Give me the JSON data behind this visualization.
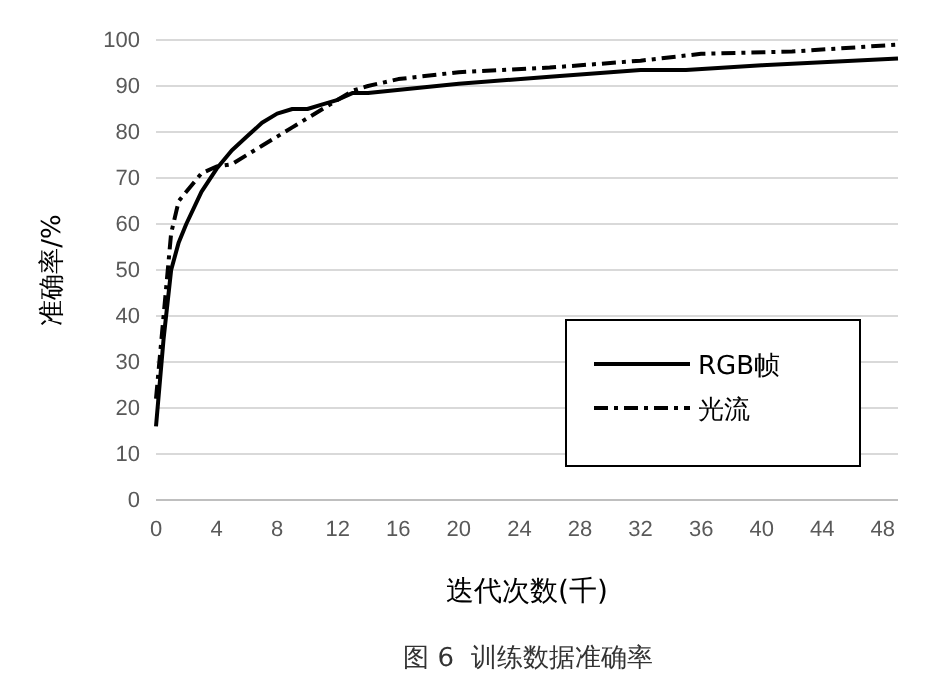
{
  "chart_data": {
    "type": "line",
    "xlabel": "迭代次数(千)",
    "ylabel": "准确率/%",
    "annotations": [
      "图 6  训练数据准确率"
    ],
    "xlim": [
      0,
      49
    ],
    "xticks": [
      0,
      4,
      8,
      12,
      16,
      20,
      24,
      28,
      32,
      36,
      40,
      44,
      48
    ],
    "ylim": [
      0,
      100
    ],
    "yticks": [
      0,
      10,
      20,
      30,
      40,
      50,
      60,
      70,
      80,
      90,
      100
    ],
    "grid": "y",
    "legend": "right",
    "marker": "none",
    "series": [
      {
        "name": "RGB帧",
        "color": "#000000",
        "line_style": "solid",
        "x": [
          0,
          0.5,
          1,
          1.5,
          2,
          3,
          4,
          5,
          6,
          7,
          8,
          9,
          10,
          11,
          12,
          13,
          14,
          20,
          26,
          32,
          35,
          40,
          49
        ],
        "values": [
          16,
          35,
          50,
          56,
          60,
          67,
          72,
          76,
          79,
          82,
          84,
          85,
          85,
          86,
          87,
          88.5,
          88.5,
          90.5,
          92,
          93.5,
          93.5,
          94.5,
          96
        ]
      },
      {
        "name": "光流",
        "color": "#000000",
        "line_style": "dashdot",
        "x": [
          0,
          0.5,
          1,
          1.5,
          2,
          3,
          4,
          5,
          6,
          7,
          8,
          9,
          10,
          11,
          12,
          13,
          14,
          16,
          20,
          26,
          32,
          36,
          42,
          49
        ],
        "values": [
          22,
          40,
          58,
          65,
          67,
          71,
          72.5,
          73,
          75,
          77,
          79,
          81,
          83,
          85,
          87,
          89,
          90,
          91.5,
          93,
          94,
          95.5,
          97,
          97.5,
          99
        ]
      }
    ]
  }
}
